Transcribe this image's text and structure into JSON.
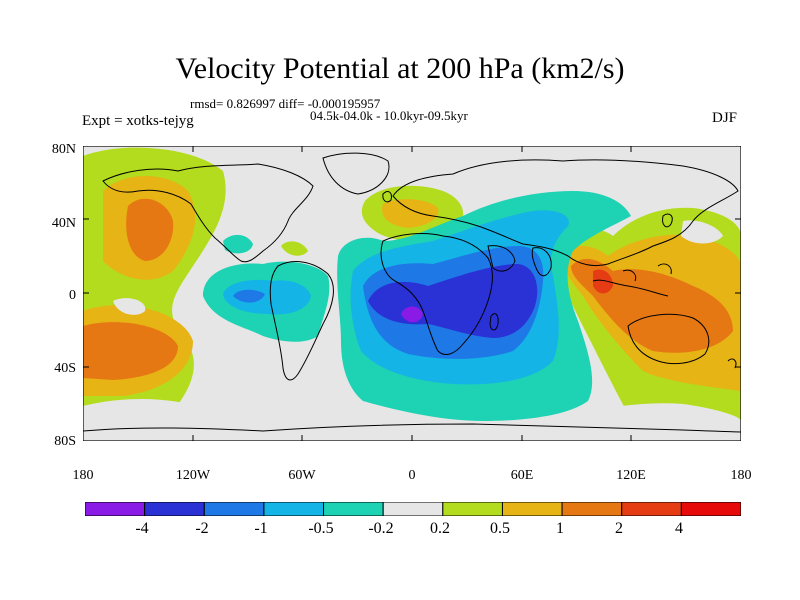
{
  "title": "Velocity Potential at 200 hPa (km2/s)",
  "stats": "rmsd= 0.826997 diff= -0.000195957",
  "period": "04.5k-04.0k - 10.0kyr-09.5kyr",
  "experiment": "Expt = xotks-tejyg",
  "season": "DJF",
  "lat_labels": [
    "80N",
    "40N",
    "0",
    "40S",
    "80S"
  ],
  "lon_labels": [
    "180",
    "120W",
    "60W",
    "0",
    "60E",
    "120E",
    "180"
  ],
  "colorbar": {
    "labels": [
      "-4",
      "-2",
      "-1",
      "-0.5",
      "-0.2",
      "0.2",
      "0.5",
      "1",
      "2",
      "4"
    ],
    "colors": [
      "#8a1ae6",
      "#2a32d6",
      "#1e78e6",
      "#14b4e6",
      "#1ed2b4",
      "#e6e6e6",
      "#b4dc1e",
      "#e6b414",
      "#e67814",
      "#e63c14",
      "#e60a0a"
    ]
  },
  "colors": {
    "background_field": "#e6e6e6",
    "coast": "#000000"
  }
}
